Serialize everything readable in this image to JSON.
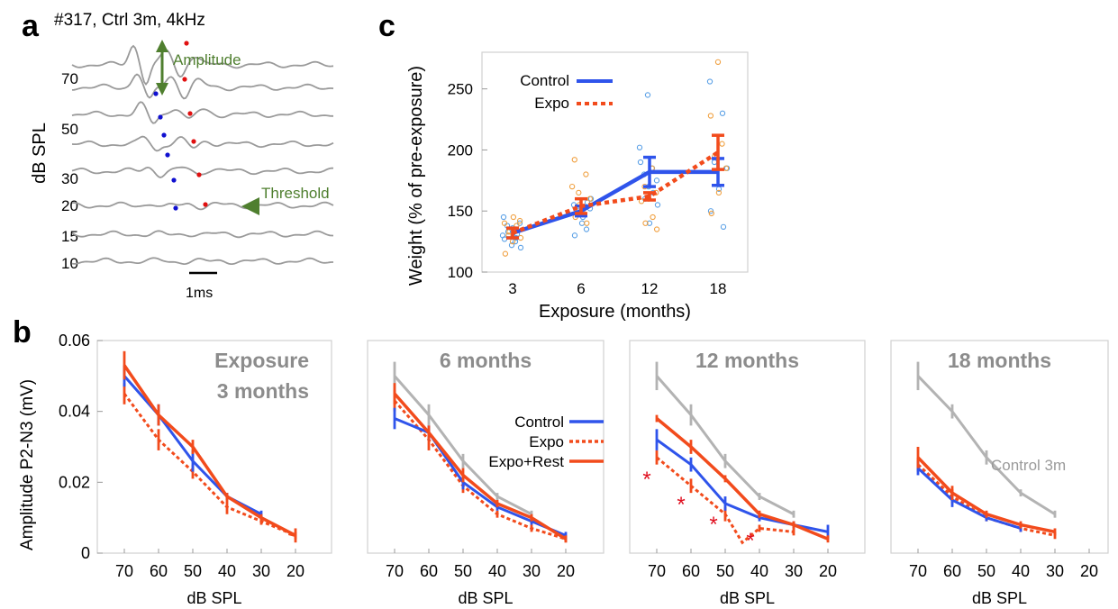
{
  "colors": {
    "control": "#2f54eb",
    "expo": "#f24b1c",
    "control3m": "#b3b3b3",
    "green": "#4f7f2f",
    "trace": "#9a9a9a",
    "ctrl_dot": "#5aa0e6",
    "expo_dot": "#f0a040",
    "dot_blue": "#1010d0",
    "dot_red": "#e01010"
  },
  "panel_letters": {
    "a": "a",
    "b": "b",
    "c": "c"
  },
  "panel_a": {
    "title": "#317, Ctrl 3m, 4kHz",
    "ylabel": "dB SPL",
    "levels": [
      "70",
      "50",
      "30",
      "20",
      "15",
      "10"
    ],
    "amplitude_label": "Amplitude",
    "threshold_label": "Threshold",
    "scalebar_label": "1ms"
  },
  "chart_data": [
    {
      "type": "line",
      "panel": "c",
      "xlabel": "Exposure (months)",
      "ylabel": "Weight (% of pre-exposure)",
      "x_ticks": [
        "3",
        "6",
        "12",
        "18"
      ],
      "y_ticks": [
        "100",
        "150",
        "200",
        "250"
      ],
      "ylim": [
        100,
        280
      ],
      "legend": [
        "Control",
        "Expo"
      ],
      "series": [
        {
          "name": "Control",
          "values": [
            132,
            150,
            182,
            182
          ],
          "err": [
            4,
            4,
            12,
            11
          ]
        },
        {
          "name": "Expo",
          "values": [
            132,
            154,
            162,
            198
          ],
          "err": [
            4,
            6,
            3,
            14
          ]
        }
      ],
      "scatter_control": [
        [
          0,
          130
        ],
        [
          0,
          125
        ],
        [
          0,
          138
        ],
        [
          0,
          140
        ],
        [
          0,
          122
        ],
        [
          0,
          145
        ],
        [
          0,
          128
        ],
        [
          0,
          133
        ],
        [
          0,
          120
        ],
        [
          0,
          136
        ],
        [
          0,
          127
        ],
        [
          0,
          131
        ],
        [
          1,
          148
        ],
        [
          1,
          152
        ],
        [
          1,
          140
        ],
        [
          1,
          155
        ],
        [
          1,
          135
        ],
        [
          1,
          150
        ],
        [
          1,
          160
        ],
        [
          1,
          145
        ],
        [
          1,
          130
        ],
        [
          1,
          157
        ],
        [
          2,
          245
        ],
        [
          2,
          202
        ],
        [
          2,
          185
        ],
        [
          2,
          180
        ],
        [
          2,
          175
        ],
        [
          2,
          170
        ],
        [
          2,
          190
        ],
        [
          2,
          165
        ],
        [
          2,
          160
        ],
        [
          2,
          155
        ],
        [
          2,
          140
        ],
        [
          3,
          256
        ],
        [
          3,
          230
        ],
        [
          3,
          190
        ],
        [
          3,
          185
        ],
        [
          3,
          168
        ],
        [
          3,
          150
        ],
        [
          3,
          137
        ]
      ],
      "scatter_expo": [
        [
          0,
          140
        ],
        [
          0,
          135
        ],
        [
          0,
          130
        ],
        [
          0,
          142
        ],
        [
          0,
          125
        ],
        [
          0,
          115
        ],
        [
          0,
          138
        ],
        [
          0,
          133
        ],
        [
          0,
          128
        ],
        [
          0,
          145
        ],
        [
          1,
          192
        ],
        [
          1,
          180
        ],
        [
          1,
          165
        ],
        [
          1,
          160
        ],
        [
          1,
          150
        ],
        [
          1,
          145
        ],
        [
          1,
          140
        ],
        [
          1,
          155
        ],
        [
          1,
          170
        ],
        [
          2,
          185
        ],
        [
          2,
          170
        ],
        [
          2,
          165
        ],
        [
          2,
          160
        ],
        [
          2,
          158
        ],
        [
          2,
          145
        ],
        [
          2,
          140
        ],
        [
          2,
          135
        ],
        [
          3,
          272
        ],
        [
          3,
          228
        ],
        [
          3,
          205
        ],
        [
          3,
          195
        ],
        [
          3,
          185
        ],
        [
          3,
          165
        ],
        [
          3,
          148
        ]
      ]
    },
    {
      "type": "line",
      "panel": "b1",
      "title": [
        "Exposure",
        "3 months"
      ],
      "xlabel": "dB SPL",
      "ylabel": "Amplitude P2-N3 (mV)",
      "x": [
        "70",
        "60",
        "50",
        "40",
        "30",
        "20"
      ],
      "y_ticks": [
        "0",
        "0.02",
        "0.04",
        "0.06"
      ],
      "ylim": [
        0,
        0.06
      ],
      "series": [
        {
          "name": "Control",
          "values": [
            0.05,
            0.039,
            0.026,
            0.016,
            0.011,
            null
          ],
          "err": [
            0.003,
            0.003,
            0.003,
            0.001,
            0.001,
            null
          ]
        },
        {
          "name": "Expo",
          "values": [
            0.045,
            0.032,
            0.023,
            0.013,
            0.009,
            0.005
          ],
          "err": [
            0.003,
            0.003,
            0.002,
            0.002,
            0.001,
            0.002
          ]
        },
        {
          "name": "Expo+Rest",
          "values": [
            0.053,
            0.039,
            0.03,
            0.016,
            0.01,
            0.005
          ],
          "err": [
            0.004,
            0.003,
            0.002,
            0.001,
            0.001,
            0.001
          ]
        }
      ],
      "extra_point": [
        22,
        0.0055
      ]
    },
    {
      "type": "line",
      "panel": "b2",
      "title": [
        "6 months"
      ],
      "xlabel": "dB SPL",
      "x": [
        "70",
        "60",
        "50",
        "40",
        "30",
        "20"
      ],
      "legend": [
        "Control",
        "Expo",
        "Expo+Rest"
      ],
      "series": [
        {
          "name": "Control 3m",
          "values": [
            0.05,
            0.039,
            0.026,
            0.016,
            0.011,
            null
          ],
          "err": [
            0.004,
            0.003,
            0.002,
            0.001,
            0.001,
            null
          ]
        },
        {
          "name": "Control",
          "values": [
            0.038,
            0.034,
            0.02,
            0.013,
            0.009,
            0.005
          ],
          "err": [
            0.003,
            0.002,
            0.002,
            0.001,
            0.001,
            0.001
          ]
        },
        {
          "name": "Expo",
          "values": [
            0.043,
            0.032,
            0.019,
            0.011,
            0.007,
            0.004
          ],
          "err": [
            0.003,
            0.003,
            0.002,
            0.001,
            0.001,
            0.001
          ]
        },
        {
          "name": "Expo+Rest",
          "values": [
            0.045,
            0.034,
            0.022,
            0.014,
            0.01,
            0.004
          ],
          "err": [
            0.003,
            0.002,
            0.002,
            0.001,
            0.001,
            0.001
          ]
        }
      ]
    },
    {
      "type": "line",
      "panel": "b3",
      "title": [
        "12 months"
      ],
      "xlabel": "dB SPL",
      "x": [
        "70",
        "60",
        "50",
        "40",
        "30",
        "20"
      ],
      "asterisk": "*",
      "series": [
        {
          "name": "Control 3m",
          "values": [
            0.05,
            0.039,
            0.026,
            0.016,
            0.011,
            null
          ],
          "err": [
            0.004,
            0.003,
            0.002,
            0.001,
            0.001,
            null
          ]
        },
        {
          "name": "Control",
          "values": [
            0.032,
            0.025,
            0.014,
            0.01,
            0.008,
            0.006
          ],
          "err": [
            0.003,
            0.002,
            0.002,
            0.001,
            0.001,
            0.002
          ]
        },
        {
          "name": "Expo",
          "values": [
            0.027,
            0.019,
            0.011,
            0.007,
            0.006,
            null
          ],
          "err": [
            0.002,
            0.002,
            0.002,
            0.001,
            0.001,
            null
          ]
        },
        {
          "name": "Expo+Rest",
          "values": [
            0.038,
            0.03,
            0.021,
            0.011,
            0.008,
            0.004
          ],
          "err": [
            0.001,
            0.002,
            0.001,
            0.001,
            0.001,
            0.001
          ]
        }
      ],
      "expo_dip": [
        45,
        0.003
      ]
    },
    {
      "type": "line",
      "panel": "b4",
      "title": [
        "18 months"
      ],
      "xlabel": "dB SPL",
      "x": [
        "70",
        "60",
        "50",
        "40",
        "30",
        "20"
      ],
      "annotation": "Control 3m",
      "series": [
        {
          "name": "Control 3m",
          "values": [
            0.05,
            0.04,
            0.027,
            0.017,
            0.011,
            null
          ],
          "err": [
            0.004,
            0.002,
            0.002,
            0.001,
            0.001,
            null
          ]
        },
        {
          "name": "Control",
          "values": [
            0.024,
            0.015,
            0.01,
            0.007,
            null,
            null
          ],
          "err": [
            0.002,
            0.002,
            0.001,
            0.001,
            null,
            null
          ]
        },
        {
          "name": "Expo",
          "values": [
            0.025,
            0.016,
            0.01,
            0.007,
            0.005,
            null
          ],
          "err": [
            0.002,
            0.002,
            0.001,
            0.001,
            0.001,
            null
          ]
        },
        {
          "name": "Expo+Rest",
          "values": [
            0.027,
            0.017,
            0.011,
            0.008,
            0.006,
            null
          ],
          "err": [
            0.003,
            0.002,
            0.001,
            0.001,
            0.001,
            null
          ]
        }
      ]
    }
  ]
}
